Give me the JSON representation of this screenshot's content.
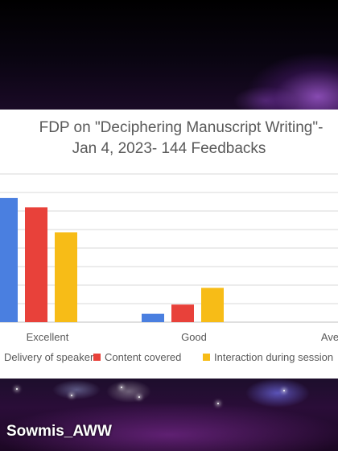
{
  "watermark": "Sowmis_AWW",
  "chart_data": {
    "type": "bar",
    "title_line1": "FDP on \"Deciphering Manuscript Writing\"-",
    "title_line2": "Jan 4, 2023- 144 Feedbacks",
    "categories": [
      "Excellent",
      "Good",
      "Average"
    ],
    "series": [
      {
        "name": "Delivery of speaker",
        "color": "#4A7FE0",
        "values": [
          134,
          9,
          0
        ]
      },
      {
        "name": "Content covered",
        "color": "#E8413A",
        "values": [
          124,
          19,
          0
        ]
      },
      {
        "name": "Interaction during session",
        "color": "#F7BC17",
        "values": [
          97,
          37,
          0
        ]
      }
    ],
    "ylim": [
      0,
      160
    ],
    "grid": true,
    "legend_position": "bottom",
    "xlabel": "",
    "ylabel": ""
  }
}
